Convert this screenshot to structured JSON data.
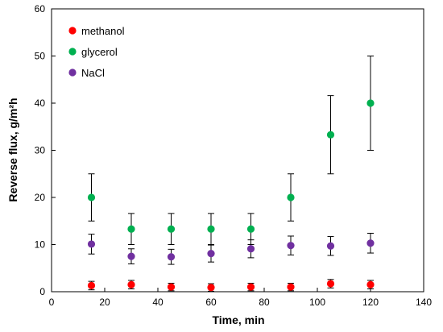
{
  "chart_data": {
    "type": "scatter",
    "xlabel": "Time, min",
    "ylabel": "Reverse flux, g/m²h",
    "xlim": [
      0,
      140
    ],
    "ylim": [
      0,
      60
    ],
    "xticks": [
      0,
      20,
      40,
      60,
      80,
      100,
      120,
      140
    ],
    "yticks": [
      0,
      10,
      20,
      30,
      40,
      50,
      60
    ],
    "grid": false,
    "legend_position": "top-left",
    "x": [
      15,
      30,
      45,
      60,
      75,
      90,
      105,
      120
    ],
    "series": [
      {
        "name": "methanol",
        "color": "#ff0000",
        "values": [
          1.3,
          1.5,
          1.0,
          0.9,
          1.0,
          1.0,
          1.7,
          1.5
        ],
        "errors": [
          0.9,
          0.9,
          0.8,
          0.8,
          0.8,
          0.8,
          0.9,
          0.9
        ]
      },
      {
        "name": "glycerol",
        "color": "#00b050",
        "values": [
          20.0,
          13.3,
          13.3,
          13.3,
          13.3,
          20.0,
          33.3,
          40.0
        ],
        "errors": [
          5.0,
          3.3,
          3.3,
          3.3,
          3.3,
          5.0,
          8.3,
          10.0
        ]
      },
      {
        "name": "NaCl",
        "color": "#7030a0",
        "values": [
          10.1,
          7.5,
          7.4,
          8.1,
          9.1,
          9.8,
          9.7,
          10.3
        ],
        "errors": [
          2.1,
          1.6,
          1.6,
          1.8,
          1.9,
          2.0,
          2.0,
          2.1
        ]
      }
    ]
  }
}
